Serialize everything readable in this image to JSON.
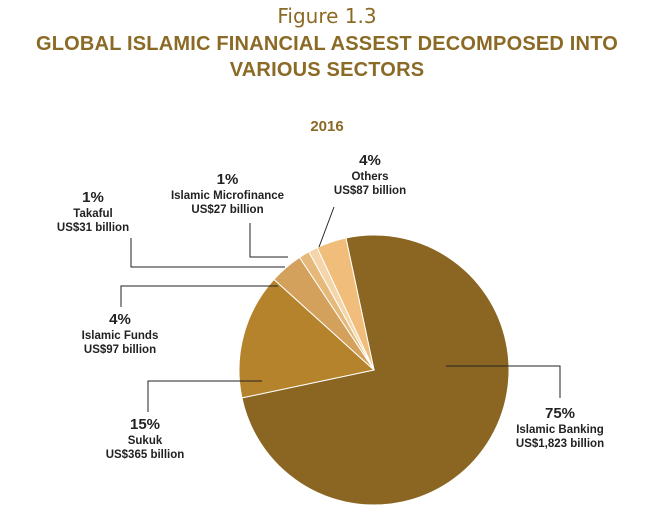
{
  "figure_label": "Figure 1.3",
  "title": "GLOBAL ISLAMIC FINANCIAL ASSEST DECOMPOSED INTO VARIOUS SECTORS",
  "chart_data": {
    "type": "pie",
    "title": "GLOBAL ISLAMIC FINANCIAL ASSEST DECOMPOSED INTO VARIOUS SECTORS",
    "subtitle": "2016",
    "slices": [
      {
        "name": "Islamic Banking",
        "value": 1823,
        "percent_label": "75%",
        "amount_label": "US$1,823 billion",
        "color": "#8b6622"
      },
      {
        "name": "Sukuk",
        "value": 365,
        "percent_label": "15%",
        "amount_label": "US$365 billion",
        "color": "#b5832c"
      },
      {
        "name": "Islamic Funds",
        "value": 97,
        "percent_label": "4%",
        "amount_label": "US$97 billion",
        "color": "#d3a15c"
      },
      {
        "name": "Takaful",
        "value": 31,
        "percent_label": "1%",
        "amount_label": "US$31 billion",
        "color": "#e5b979"
      },
      {
        "name": "Islamic Microfinance",
        "value": 27,
        "percent_label": "1%",
        "amount_label": "US$27 billion",
        "color": "#f4d5aa"
      },
      {
        "name": "Others",
        "value": 87,
        "percent_label": "4%",
        "amount_label": "US$87 billion",
        "color": "#f1bd7a"
      }
    ]
  }
}
